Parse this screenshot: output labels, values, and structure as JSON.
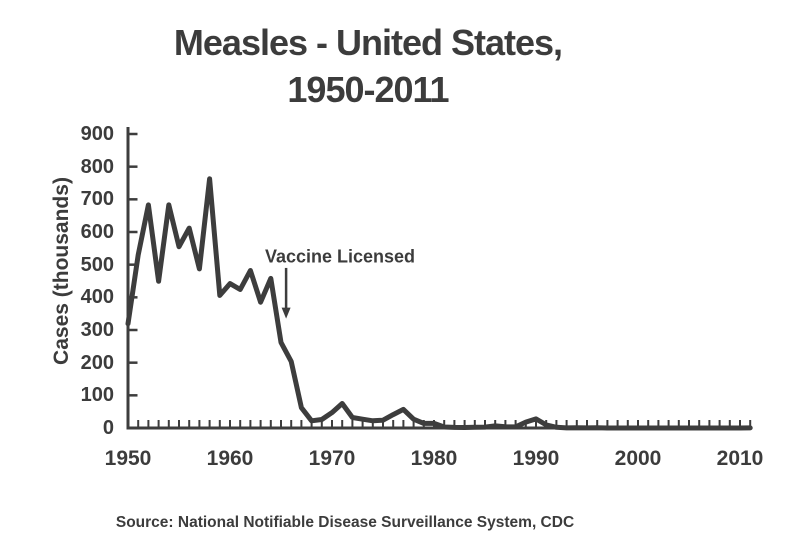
{
  "title": {
    "line1": "Measles - United States,",
    "line2": "1950-2011"
  },
  "y_axis": {
    "label": "Cases (thousands)",
    "ticks": [
      "900",
      "800",
      "700",
      "600",
      "500",
      "400",
      "300",
      "200",
      "100",
      "0"
    ]
  },
  "x_axis": {
    "ticks": [
      "1950",
      "1960",
      "1970",
      "1980",
      "1990",
      "2000",
      "2010"
    ]
  },
  "annotation": {
    "text": "Vaccine Licensed",
    "arrow": {
      "year": 1965.5,
      "from_cases": 490,
      "to_cases": 335
    }
  },
  "source": "Source: National Notifiable Disease Surveillance System, CDC",
  "colors": {
    "ink": "#3d3d3d",
    "background": "#ffffff"
  },
  "chart_data": {
    "type": "line",
    "title": "Measles - United States, 1950-2011",
    "xlabel": "",
    "ylabel": "Cases (thousands)",
    "xlim": [
      1950,
      2011
    ],
    "ylim": [
      0,
      900
    ],
    "y_tick_step": 100,
    "x_label_step": 10,
    "x_minor_tick_step": 1,
    "grid": false,
    "legend": false,
    "series_name": "Reported measles cases (thousands)",
    "x": [
      1950,
      1951,
      1952,
      1953,
      1954,
      1955,
      1956,
      1957,
      1958,
      1959,
      1960,
      1961,
      1962,
      1963,
      1964,
      1965,
      1966,
      1967,
      1968,
      1969,
      1970,
      1971,
      1972,
      1973,
      1974,
      1975,
      1976,
      1977,
      1978,
      1979,
      1980,
      1981,
      1982,
      1983,
      1984,
      1985,
      1986,
      1987,
      1988,
      1989,
      1990,
      1991,
      1992,
      1993,
      1994,
      1995,
      1996,
      1997,
      1998,
      1999,
      2000,
      2001,
      2002,
      2003,
      2004,
      2005,
      2006,
      2007,
      2008,
      2009,
      2010,
      2011
    ],
    "values": [
      319,
      530,
      683,
      449,
      683,
      555,
      612,
      487,
      763,
      406,
      442,
      424,
      482,
      385,
      458,
      262,
      204,
      62,
      22,
      26,
      47,
      75,
      32,
      27,
      22,
      24,
      41,
      57,
      27,
      14,
      14,
      3,
      1.7,
      1.5,
      2.6,
      2.8,
      6.3,
      3.7,
      3.4,
      18,
      28,
      9.6,
      2.2,
      0.3,
      1,
      0.3,
      0.5,
      0.1,
      0.1,
      0.1,
      0.1,
      0.1,
      0.04,
      0.06,
      0.04,
      0.07,
      0.06,
      0.04,
      0.14,
      0.07,
      0.06,
      0.22
    ],
    "annotations": [
      {
        "text": "Vaccine Licensed",
        "points_to_year": 1965.5
      }
    ]
  }
}
